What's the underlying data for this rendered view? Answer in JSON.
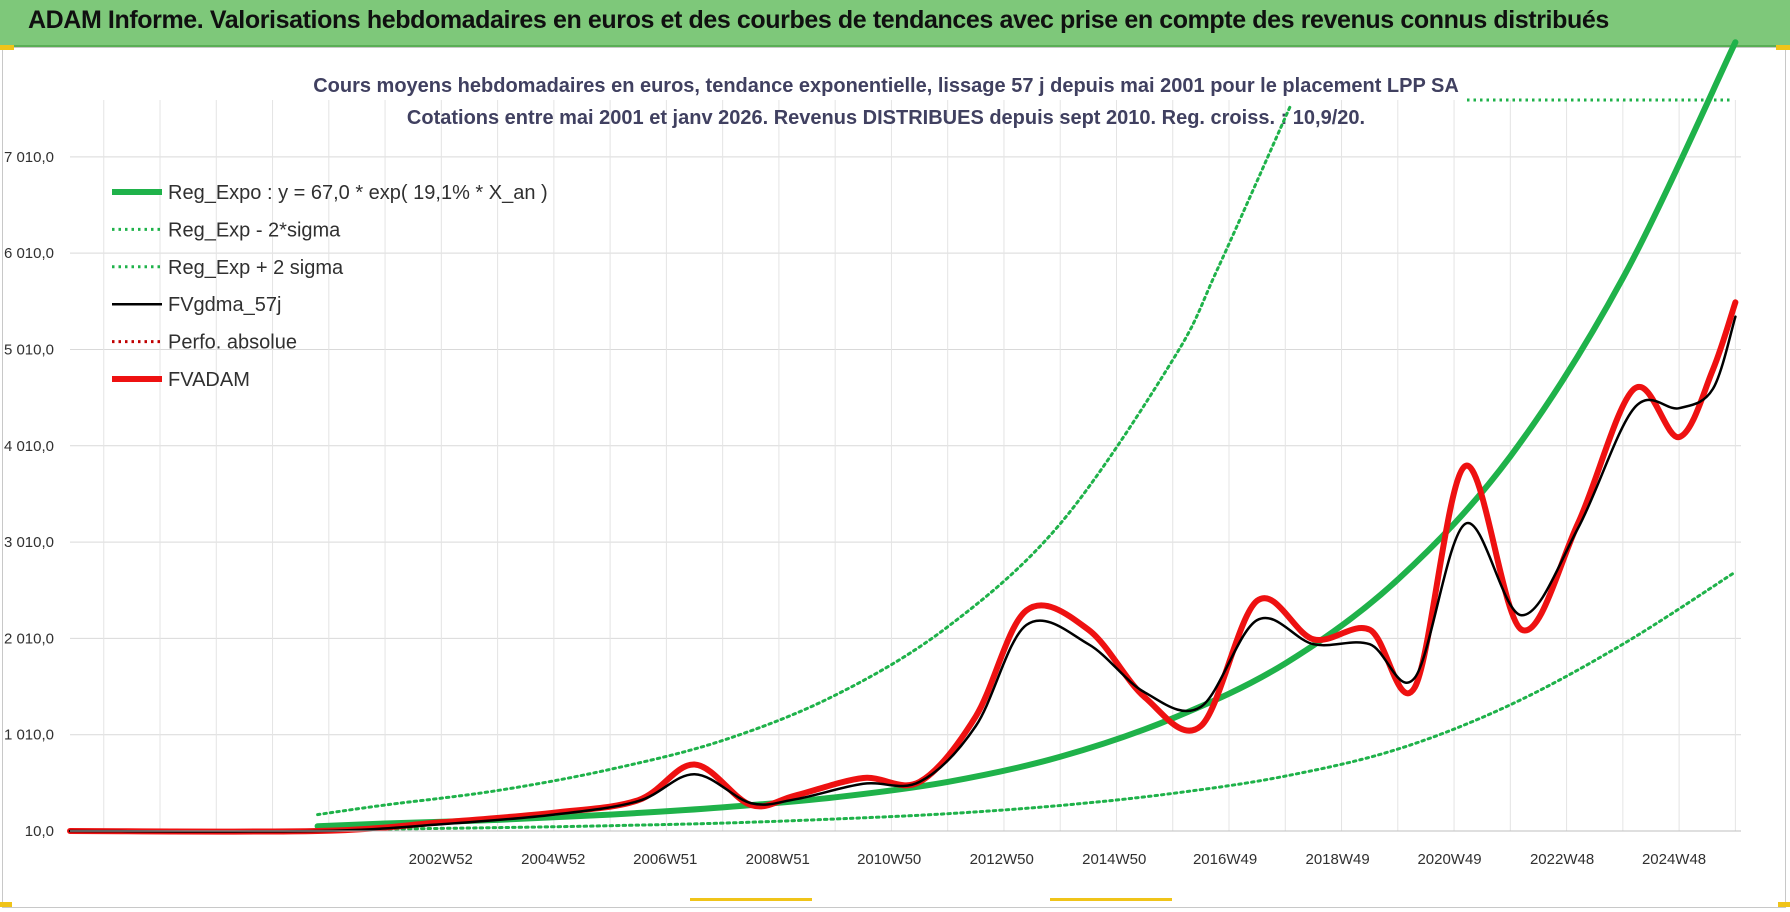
{
  "header": {
    "title": "ADAM Informe. Valorisations hebdomadaires en euros et des courbes de tendances avec prise en compte des revenus connus distribués"
  },
  "colors": {
    "banner": "#7ec87a",
    "regression": "#1fb24a",
    "sigma_band": "#1fb24a",
    "smoothed": "#000000",
    "perfo": "#c00000",
    "price": "#ee1111",
    "title_text": "#404060"
  },
  "chart_data": {
    "type": "line",
    "title": "Cours moyens hebdomadaires en euros, tendance exponentielle, lissage 57 j depuis mai 2001 pour le placement LPP SA",
    "subtitle": "Cotations entre mai 2001 et janv 2026. Revenus DISTRIBUES depuis sept 2010. Reg. croiss. : 10,9/20.",
    "xlabel": "",
    "ylabel": "",
    "x_range": [
      1996.4,
      2026.1
    ],
    "ylim": [
      10,
      7600
    ],
    "y_ticks": [
      10,
      1010,
      2010,
      3010,
      4010,
      5010,
      6010,
      7010
    ],
    "y_tick_labels": [
      "10,0",
      "1 010,0",
      "2 010,0",
      "3 010,0",
      "4 010,0",
      "5 010,0",
      "6 010,0",
      "7 010,0"
    ],
    "x_ticks": [
      2002.99,
      2004.99,
      2006.98,
      2008.98,
      2010.96,
      2012.96,
      2014.96,
      2016.93,
      2018.93,
      2020.92,
      2022.92,
      2024.91
    ],
    "x_tick_labels": [
      "2002W52",
      "2004W52",
      "2006W51",
      "2008W51",
      "2010W50",
      "2012W50",
      "2014W50",
      "2016W49",
      "2018W49",
      "2020W49",
      "2022W48",
      "2024W48"
    ],
    "grid": true,
    "legend_position": "top-left",
    "legend": [
      {
        "label": "Reg_Expo : y = 67,0 * exp( 19,1% *  X_an )",
        "style": "solid-thick",
        "color": "#1fb24a"
      },
      {
        "label": "Reg_Exp - 2*sigma",
        "style": "dotted",
        "color": "#1fb24a"
      },
      {
        "label": "Reg_Exp + 2 sigma",
        "style": "dotted",
        "color": "#1fb24a"
      },
      {
        "label": "FVgdma_57j",
        "style": "solid",
        "color": "#000000"
      },
      {
        "label": "Perfo. absolue",
        "style": "dotted",
        "color": "#c00000"
      },
      {
        "label": "FVADAM",
        "style": "solid-thick",
        "color": "#ee1111"
      }
    ],
    "series": [
      {
        "name": "Reg_Expo : y = 67,0 * exp( 19,1% *  X_an )",
        "x": [
          2000.8,
          2002,
          2004,
          2006,
          2008,
          2010,
          2012,
          2014,
          2016,
          2018,
          2020,
          2022,
          2024,
          2026
        ],
        "y": [
          60,
          88,
          125,
          180,
          255,
          360,
          520,
          780,
          1180,
          1750,
          2620,
          3900,
          5750,
          8200
        ]
      },
      {
        "name": "Reg_Exp - 2*sigma",
        "x": [
          2000.8,
          2002,
          2004,
          2006,
          2008,
          2010,
          2012,
          2014,
          2016,
          2018,
          2020,
          2022,
          2024,
          2026
        ],
        "y": [
          20,
          30,
          45,
          65,
          92,
          135,
          190,
          275,
          400,
          580,
          860,
          1320,
          1950,
          2700
        ]
      },
      {
        "name": "Reg_Exp + 2 sigma",
        "x": [
          2000.8,
          2002,
          2004,
          2006,
          2008,
          2010,
          2012,
          2014,
          2016,
          2016.8,
          2018.1
        ],
        "y": [
          180,
          280,
          430,
          650,
          950,
          1420,
          2130,
          3200,
          4900,
          5850,
          7550
        ]
      },
      {
        "name": "FVgdma_57j",
        "x": [
          1996.4,
          2000.8,
          2003,
          2005,
          2006.5,
          2007.5,
          2008.5,
          2009.3,
          2010.5,
          2011.5,
          2012.5,
          2013.4,
          2014.5,
          2015.5,
          2016.5,
          2017.5,
          2018.5,
          2019.5,
          2020.3,
          2021.2,
          2022.2,
          2023.2,
          2024.2,
          2025,
          2025.6,
          2026
        ],
        "y": [
          10,
          10,
          80,
          180,
          320,
          600,
          300,
          340,
          500,
          520,
          1100,
          2150,
          1950,
          1450,
          1300,
          2200,
          1950,
          1950,
          1600,
          3200,
          2250,
          3150,
          4400,
          4400,
          4600,
          5350
        ]
      },
      {
        "name": "Perfo. absolue",
        "x": [
          1996.4,
          2000.8
        ],
        "y": [
          10,
          10
        ]
      },
      {
        "name": "FVADAM",
        "x": [
          1996.4,
          2000.8,
          2003,
          2005,
          2006.5,
          2007.5,
          2008.5,
          2009.3,
          2010.5,
          2011.5,
          2012.5,
          2013.4,
          2014.5,
          2015.5,
          2016.5,
          2017.5,
          2018.5,
          2019.5,
          2020.3,
          2021.2,
          2022.2,
          2023.2,
          2024.2,
          2025,
          2025.6,
          2026
        ],
        "y": [
          10,
          10,
          100,
          200,
          330,
          700,
          280,
          380,
          560,
          520,
          1200,
          2300,
          2100,
          1400,
          1100,
          2400,
          2000,
          2100,
          1500,
          3800,
          2100,
          3200,
          4600,
          4100,
          4800,
          5500
        ]
      }
    ]
  }
}
